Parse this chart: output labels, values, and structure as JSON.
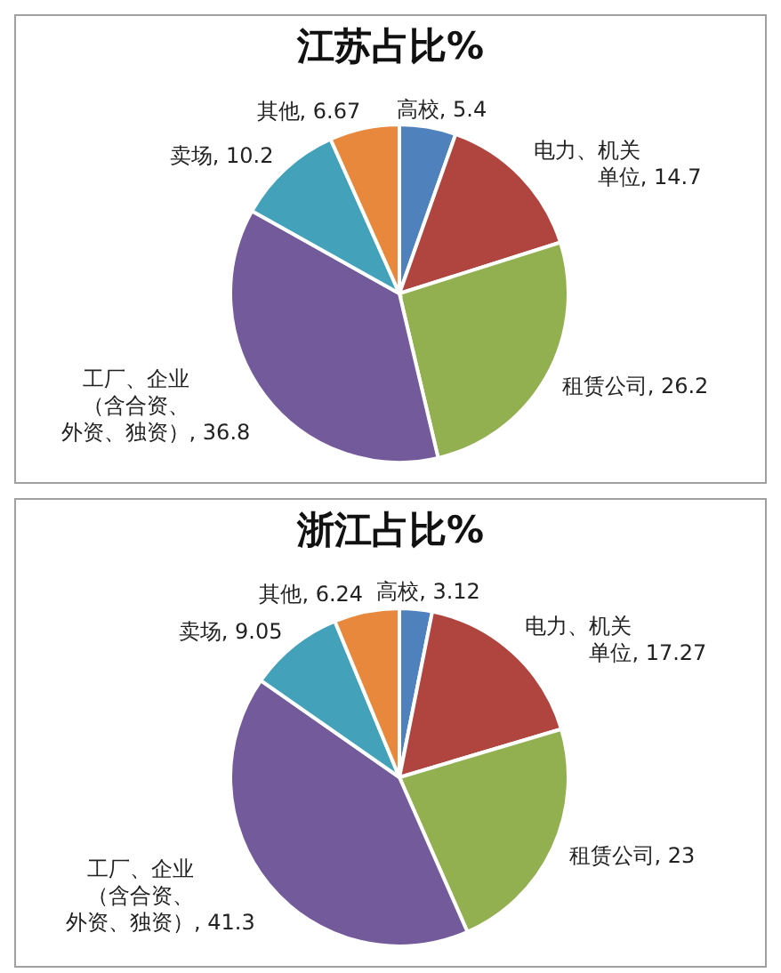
{
  "chart_data": [
    {
      "type": "pie",
      "title": "江苏占比%",
      "categories": [
        "高校",
        "电力、机关单位",
        "租赁公司",
        "工厂、企业（含合资、外资、独资）",
        "卖场",
        "其他"
      ],
      "values": [
        5.4,
        14.7,
        26.2,
        36.8,
        10.2,
        6.67
      ],
      "value_labels": [
        ", 5.4",
        ", 14.7",
        ", 26.2",
        ", 36.8",
        ", 10.2",
        ", 6.67"
      ],
      "colors": [
        "#4f81bd",
        "#b0443f",
        "#92b050",
        "#735a9a",
        "#43a1b9",
        "#e8883c"
      ]
    },
    {
      "type": "pie",
      "title": "浙江占比%",
      "categories": [
        "高校",
        "电力、机关单位",
        "租赁公司",
        "工厂、企业（含合资、外资、独资）",
        "卖场",
        "其他"
      ],
      "values": [
        3.12,
        17.27,
        23,
        41.3,
        9.05,
        6.24
      ],
      "value_labels": [
        ", 3.12",
        ", 17.27",
        ", 23",
        ", 41.3",
        ", 9.05",
        ", 6.24"
      ],
      "colors": [
        "#4f81bd",
        "#b0443f",
        "#92b050",
        "#735a9a",
        "#43a1b9",
        "#e8883c"
      ]
    }
  ]
}
